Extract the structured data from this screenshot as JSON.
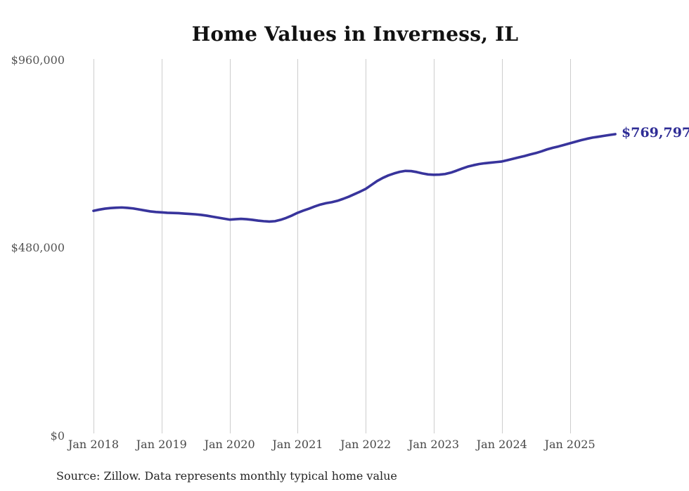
{
  "page": {
    "title": "Home Values in Inverness, IL",
    "source_note": "Source: Zillow. Data represents monthly typical home value"
  },
  "colors": {
    "background": "#ffffff",
    "line": "#38349c",
    "end_label": "#2f2d96",
    "grid": "#cdcdcd",
    "title_text": "#111111",
    "y_axis_text": "#555555",
    "x_axis_text": "#474747",
    "source_text": "#262626"
  },
  "chart_data": {
    "type": "line",
    "title": "Home Values in Inverness, IL",
    "xlabel": "",
    "ylabel": "",
    "ylim": [
      0,
      960000
    ],
    "y_ticks": [
      0,
      480000,
      960000
    ],
    "y_tick_labels": [
      "$0",
      "$480,000",
      "$960,000"
    ],
    "x_tick_labels": [
      "Jan 2018",
      "Jan 2019",
      "Jan 2020",
      "Jan 2021",
      "Jan 2022",
      "Jan 2023",
      "Jan 2024",
      "Jan 2025"
    ],
    "grid": "vertical",
    "legend": "none",
    "series": [
      {
        "name": "Monthly typical home value",
        "cadence": "monthly",
        "start_month": "Jan 2018",
        "end_month": "Sep 2025",
        "values": [
          574000,
          577000,
          579500,
          581000,
          582000,
          582500,
          581500,
          580000,
          577500,
          575000,
          572500,
          571000,
          570000,
          569000,
          568500,
          568000,
          567000,
          566000,
          565000,
          563500,
          561500,
          559000,
          556500,
          554000,
          551500,
          552500,
          553500,
          552500,
          551000,
          549000,
          547500,
          546500,
          547500,
          551000,
          556000,
          562000,
          569000,
          574500,
          579500,
          585000,
          590000,
          593500,
          596000,
          599500,
          604500,
          610000,
          616500,
          623000,
          630000,
          640000,
          650000,
          658000,
          664500,
          669500,
          673500,
          676000,
          675500,
          673000,
          669500,
          667000,
          666000,
          666500,
          668000,
          671500,
          676500,
          682000,
          687000,
          690500,
          693500,
          695500,
          697000,
          698500,
          700000,
          703500,
          707000,
          710500,
          714000,
          718000,
          721500,
          726000,
          731000,
          735000,
          738500,
          742500,
          746500,
          750500,
          754500,
          758000,
          761000,
          763200,
          765500,
          767800,
          769797
        ],
        "final_value": 769797,
        "final_value_label": "$769,797"
      }
    ]
  }
}
